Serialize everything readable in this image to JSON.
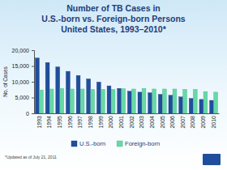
{
  "chart_data": {
    "type": "bar",
    "title": "Number of TB Cases in\nU.S.-born vs. Foreign-born Persons\nUnited States, 1993–2010*",
    "y_label": "No. of Cases",
    "annotations": [
      "*Updated as of July 21, 2011"
    ],
    "categories": [
      "1993",
      "1994",
      "1995",
      "1996",
      "1997",
      "1998",
      "1999",
      "2000",
      "2001",
      "2002",
      "2003",
      "2004",
      "2005",
      "2006",
      "2007",
      "2008",
      "2009",
      "2010"
    ],
    "series": [
      {
        "name": "U.S.-born",
        "color": "#1f4e9c",
        "values": [
          17500,
          16100,
          14700,
          13300,
          12000,
          10900,
          9900,
          8700,
          7900,
          7000,
          6700,
          6500,
          6000,
          5700,
          5200,
          4700,
          4400,
          4100
        ]
      },
      {
        "name": "Foreign-born",
        "color": "#66d9a8",
        "values": [
          7400,
          7700,
          7900,
          7700,
          7700,
          7600,
          7600,
          7600,
          7800,
          7700,
          7900,
          7700,
          7700,
          7700,
          7600,
          7600,
          6900,
          6700
        ]
      }
    ],
    "ylim": [
      0,
      20000
    ],
    "yticks": [
      0,
      {
        "value": 5000,
        "label": "5,000"
      },
      {
        "value": 10000,
        "label": "10,000"
      },
      {
        "value": 15000,
        "label": "15,000"
      },
      {
        "value": 20000,
        "label": "20,000"
      }
    ],
    "grid": false,
    "legend": "bottom"
  }
}
